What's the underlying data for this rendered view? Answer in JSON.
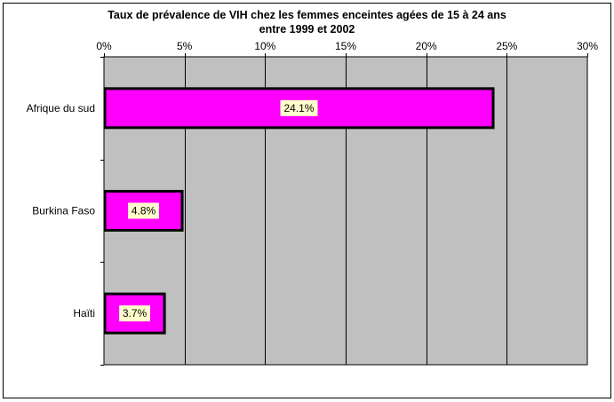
{
  "chart_data": {
    "type": "bar",
    "orientation": "horizontal",
    "title_lines": [
      "Taux de prévalence de VIH chez les femmes enceintes agées de 15 à 24 ans",
      "entre 1999 et 2002"
    ],
    "categories": [
      "Afrique du sud",
      "Burkina Faso",
      "Haïti"
    ],
    "values": [
      24.1,
      4.8,
      3.7
    ],
    "data_labels": [
      "24.1%",
      "4.8%",
      "3.7%"
    ],
    "xlim": [
      0,
      30
    ],
    "x_ticks": [
      0,
      5,
      10,
      15,
      20,
      25,
      30
    ],
    "x_tick_labels": [
      "0%",
      "5%",
      "10%",
      "15%",
      "20%",
      "25%",
      "30%"
    ],
    "axis_position": "top",
    "grid": true,
    "legend": "none",
    "colors": {
      "bar_fill": "#ff00ff",
      "bar_stroke": "#000000",
      "plot_background": "#c0c0c0",
      "data_label_background": "#ffffcc"
    }
  }
}
